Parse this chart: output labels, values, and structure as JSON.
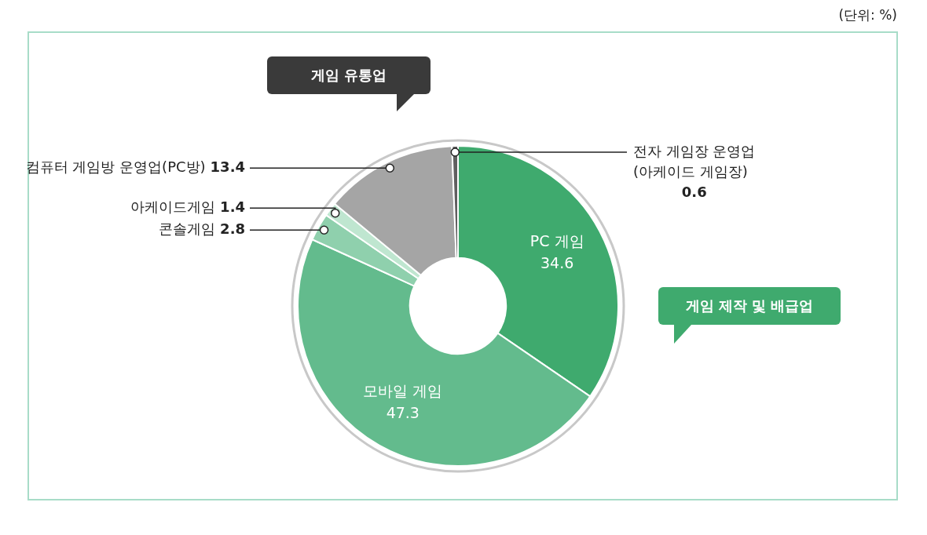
{
  "chart_data": {
    "type": "donut",
    "categories": [
      "PC 게임",
      "모바일 게임",
      "콘솔게임",
      "아케이드게임",
      "컴퓨터 게임방 운영업(PC방)",
      "전자 게임장 운영업\n(아케이드 게임장)"
    ],
    "values": [
      34.6,
      47.3,
      2.8,
      1.4,
      13.4,
      0.6
    ],
    "colors": [
      "#3faa6e",
      "#63bb8d",
      "#8fd0ad",
      "#bfe6d0",
      "#a5a5a5",
      "#5f5f5f"
    ],
    "data_labels": true,
    "legend": false,
    "annotations": [
      "(단위: %)",
      "게임 유통업",
      "게임 제작 및 배급업"
    ]
  }
}
